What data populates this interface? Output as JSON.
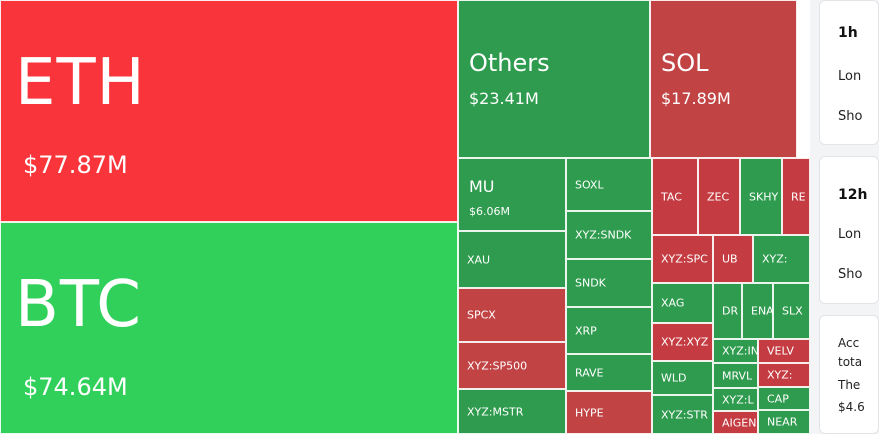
{
  "tiles": [
    {
      "sym": "ETH",
      "val": "$77.87M",
      "color": "eth",
      "size": "xl"
    },
    {
      "sym": "BTC",
      "val": "$74.64M",
      "color": "btc",
      "size": "xl"
    },
    {
      "sym": "Others",
      "val": "$23.41M",
      "color": "g",
      "size": "lg"
    },
    {
      "sym": "SOL",
      "val": "$17.89M",
      "color": "r",
      "size": "lg"
    },
    {
      "sym": "MU",
      "val": "$6.06M",
      "color": "g",
      "size": "md"
    },
    {
      "sym": "XAU",
      "val": "",
      "color": "g",
      "size": "sm"
    },
    {
      "sym": "SPCX",
      "val": "",
      "color": "r",
      "size": "sm"
    },
    {
      "sym": "XYZ:SP500",
      "val": "",
      "color": "r",
      "size": "sm"
    },
    {
      "sym": "XYZ:MSTR",
      "val": "",
      "color": "g",
      "size": "sm"
    },
    {
      "sym": "SOXL",
      "val": "",
      "color": "g",
      "size": "sm"
    },
    {
      "sym": "XYZ:SNDK",
      "val": "",
      "color": "g",
      "size": "sm"
    },
    {
      "sym": "SNDK",
      "val": "",
      "color": "g",
      "size": "sm"
    },
    {
      "sym": "XRP",
      "val": "",
      "color": "g",
      "size": "sm"
    },
    {
      "sym": "RAVE",
      "val": "",
      "color": "g",
      "size": "sm"
    },
    {
      "sym": "HYPE",
      "val": "",
      "color": "r",
      "size": "sm"
    },
    {
      "sym": "TAC",
      "val": "",
      "color": "rr",
      "size": "xs"
    },
    {
      "sym": "ZEC",
      "val": "",
      "color": "rr",
      "size": "xs"
    },
    {
      "sym": "SKHY",
      "val": "",
      "color": "g",
      "size": "xs"
    },
    {
      "sym": "RE",
      "val": "",
      "color": "rr",
      "size": "xs"
    },
    {
      "sym": "XYZ:SPC",
      "val": "",
      "color": "rr",
      "size": "xs"
    },
    {
      "sym": "UB",
      "val": "",
      "color": "rr",
      "size": "xs"
    },
    {
      "sym": "XYZ:",
      "val": "",
      "color": "g",
      "size": "xs"
    },
    {
      "sym": "XAG",
      "val": "",
      "color": "g",
      "size": "xs"
    },
    {
      "sym": "DR",
      "val": "",
      "color": "g",
      "size": "xs"
    },
    {
      "sym": "ENA",
      "val": "",
      "color": "g",
      "size": "xs"
    },
    {
      "sym": "SLX",
      "val": "",
      "color": "g",
      "size": "xs"
    },
    {
      "sym": "XYZ:XYZ",
      "val": "",
      "color": "rr",
      "size": "xs"
    },
    {
      "sym": "XYZ:IN",
      "val": "",
      "color": "g",
      "size": "xs"
    },
    {
      "sym": "VELV",
      "val": "",
      "color": "rr",
      "size": "xs"
    },
    {
      "sym": "WLD",
      "val": "",
      "color": "g",
      "size": "xs"
    },
    {
      "sym": "MRVL",
      "val": "",
      "color": "g",
      "size": "xs"
    },
    {
      "sym": "XYZ:",
      "val": "",
      "color": "rr",
      "size": "xs"
    },
    {
      "sym": "XYZ:L",
      "val": "",
      "color": "g",
      "size": "xs"
    },
    {
      "sym": "CAP",
      "val": "",
      "color": "g",
      "size": "xs"
    },
    {
      "sym": "XYZ:STR",
      "val": "",
      "color": "g",
      "size": "xs"
    },
    {
      "sym": "AIGEN",
      "val": "",
      "color": "rr",
      "size": "xs"
    },
    {
      "sym": "NEAR",
      "val": "",
      "color": "g",
      "size": "xs"
    }
  ],
  "sidebar": {
    "card1": {
      "period": "1h",
      "row1": "Lon",
      "row2": "Sho"
    },
    "card2": {
      "period": "12h",
      "row1": "Lon",
      "row2": "Sho"
    },
    "card3": {
      "lines": [
        "Acc",
        "tota",
        "The",
        "$4.6"
      ]
    }
  },
  "colors": {
    "eth": "#f9353b",
    "btc": "#31d05a",
    "green": "#2e9b4e",
    "red": "#c14344"
  }
}
